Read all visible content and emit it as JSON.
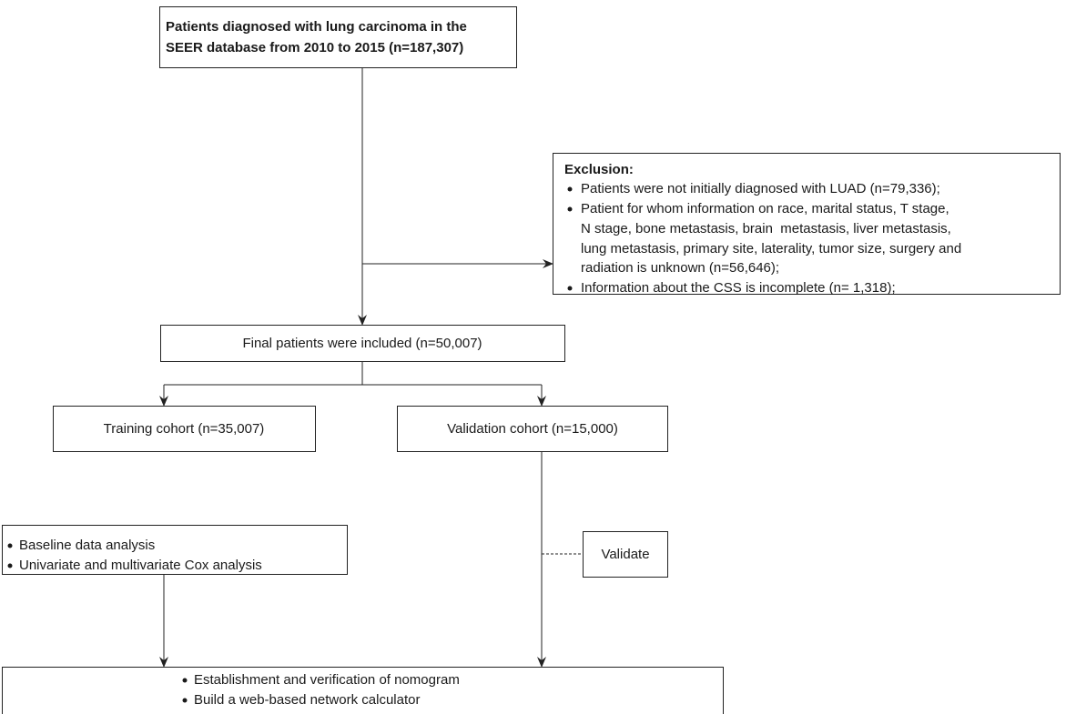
{
  "nodes": [
    {
      "lines": [
        "Patients diagnosed with lung carcinoma in the",
        "SEER database from 2010 to 2015 (n=187,307)"
      ]
    },
    {
      "heading": "Exclusion:",
      "items": [
        [
          "Patients were not initially diagnosed with LUAD (n=79,336);"
        ],
        [
          "Patient for whom information on race, marital status, T stage,",
          "N stage, bone metastasis, brain  metastasis, liver metastasis,",
          "lung metastasis, primary site, laterality, tumor size, surgery and",
          "radiation is unknown (n=56,646);"
        ],
        [
          "Information about the CSS is incomplete (n= 1,318);"
        ]
      ]
    },
    {
      "label": "Final patients were included (n=50,007)"
    },
    {
      "label": "Training cohort (n=35,007)"
    },
    {
      "label": "Validation cohort (n=15,000)"
    },
    {
      "label": "Validate"
    },
    {
      "items": [
        "Baseline data analysis",
        "Univariate and multivariate Cox analysis"
      ]
    },
    {
      "items": [
        "Establishment and verification of nomogram",
        "Build a web-based network calculator"
      ]
    }
  ]
}
